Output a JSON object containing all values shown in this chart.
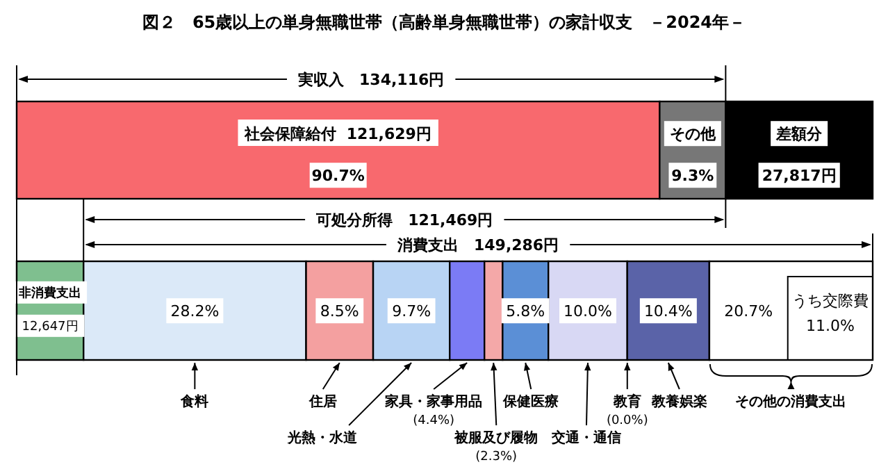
{
  "chart_data": {
    "type": "bar",
    "orientation": "horizontal",
    "stacked": true,
    "legend": "bottom",
    "title": "図２　65歳以上の単身無職世帯（高齢単身無職世帯）の家計収支　－2024年－",
    "categories": [
      null,
      null
    ],
    "series": [
      {
        "name": "社会保障給付",
        "color": "#f8696e",
        "values": [
          121629,
          null
        ],
        "value_labels": [
          "121,629円",
          null
        ]
      },
      {
        "name": "その他",
        "color": "#777777",
        "values": [
          12487,
          null
        ]
      },
      {
        "name": "差額分",
        "color": "#000000",
        "values": [
          27817,
          null
        ],
        "value_labels": [
          "27,817円",
          null
        ]
      },
      {
        "name": "非消費支出",
        "color": "#7fbf8f",
        "values": [
          null,
          12647
        ],
        "value_labels": [
          null,
          "12,647円"
        ]
      },
      {
        "name": "食料",
        "color": "#dbe9f8",
        "values": [
          null,
          42099
        ]
      },
      {
        "name": "住居",
        "color": "#f4a0a0",
        "values": [
          null,
          12689
        ]
      },
      {
        "name": "光熱・水道",
        "color": "#b8d4f4",
        "values": [
          null,
          14481
        ]
      },
      {
        "name": "家具・家事用品",
        "color": "#7b7bf5",
        "values": [
          null,
          6569
        ]
      },
      {
        "name": "被服及び履物",
        "color": "#f4a8a8",
        "values": [
          null,
          3434
        ]
      },
      {
        "name": "保健医療",
        "color": "#5b8fd6",
        "values": [
          null,
          8659
        ]
      },
      {
        "name": "交通・通信",
        "color": "#d8d8f4",
        "values": [
          null,
          14929
        ]
      },
      {
        "name": "教育",
        "color": "#000000",
        "values": [
          null,
          0
        ]
      },
      {
        "name": "教養娯楽",
        "color": "#5a63a8",
        "values": [
          null,
          15526
        ]
      },
      {
        "name": "その他の消費支出",
        "color": "#ffffff",
        "values": [
          null,
          30902
        ]
      }
    ],
    "ref_lines": [
      {
        "axis": "x",
        "value": 134116
      }
    ],
    "annotations": [
      "実収入　134,116円",
      "可処分所得　121,469円",
      "消費支出　149,286円",
      "90.7%",
      "9.3%",
      "28.2%",
      "8.5%",
      "9.7%",
      "(4.4%)",
      "(2.3%)",
      "5.8%",
      "10.0%",
      "(0.0%)",
      "10.4%",
      "20.7%",
      "うち交際費 11.0%"
    ]
  }
}
